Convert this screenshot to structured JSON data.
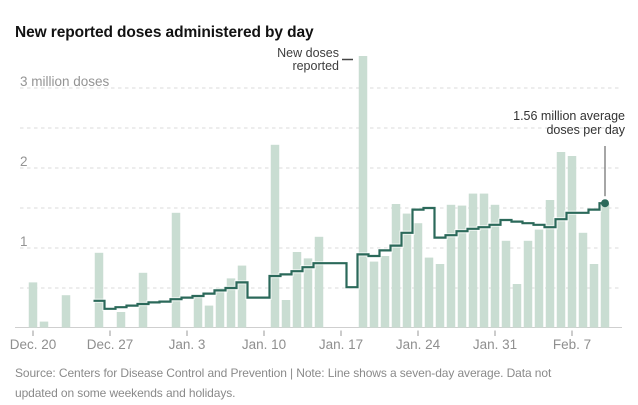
{
  "title": "New reported doses administered by day",
  "annotations": {
    "spike": {
      "line1": "New doses",
      "line2": "reported"
    },
    "average": {
      "line1": "1.56 million average",
      "line2": "doses per day"
    }
  },
  "source_note": "Source: Centers for Disease Control and Prevention | Note: Line shows a seven-day average. Data not updated on some weekends and holidays.",
  "colors": {
    "bar": "#c9ddd2",
    "line": "#2b695a",
    "line_casing": "rgba(255,255,255,0.55)",
    "grid": "#dbdbdb",
    "baseline": "#cfcfcf",
    "tick": "#999999",
    "axis_text": "#929292",
    "title_text": "#121212",
    "annotation_text": "#3d3d3d",
    "pointer": "#757575",
    "source_text": "#8a8a8a"
  },
  "y_axis": {
    "labels": [
      {
        "value": 3,
        "text": "3 million doses"
      },
      {
        "value": 2,
        "text": "2"
      },
      {
        "value": 1,
        "text": "1"
      }
    ]
  },
  "chart_data": {
    "type": "bar",
    "title": "New reported doses administered by day",
    "unit": "million doses per day",
    "ylim": [
      0,
      3.5
    ],
    "y_gridlines": [
      0.5,
      1,
      1.5,
      2,
      2.5,
      3
    ],
    "grid": "dashed horizontal",
    "legend_position": "none",
    "x": [
      "Dec. 19",
      "Dec. 20",
      "Dec. 21",
      "Dec. 22",
      "Dec. 23",
      "Dec. 24",
      "Dec. 25",
      "Dec. 26",
      "Dec. 27",
      "Dec. 28",
      "Dec. 29",
      "Dec. 30",
      "Dec. 31",
      "Jan. 1",
      "Jan. 2",
      "Jan. 3",
      "Jan. 4",
      "Jan. 5",
      "Jan. 6",
      "Jan. 7",
      "Jan. 8",
      "Jan. 9",
      "Jan. 10",
      "Jan. 11",
      "Jan. 12",
      "Jan. 13",
      "Jan. 14",
      "Jan. 15",
      "Jan. 16",
      "Jan. 17",
      "Jan. 18",
      "Jan. 19",
      "Jan. 20",
      "Jan. 21",
      "Jan. 22",
      "Jan. 23",
      "Jan. 24",
      "Jan. 25",
      "Jan. 26",
      "Jan. 27",
      "Jan. 28",
      "Jan. 29",
      "Jan. 30",
      "Jan. 31",
      "Feb. 1",
      "Feb. 2",
      "Feb. 3",
      "Feb. 4",
      "Feb. 5",
      "Feb. 6",
      "Feb. 7",
      "Feb. 8",
      "Feb. 9",
      "Feb. 10"
    ],
    "series": [
      {
        "name": "New reported doses",
        "render": "bar",
        "values": [
          0,
          0.57,
          0.08,
          0,
          0.41,
          0,
          0,
          0.94,
          0,
          0.2,
          0,
          0.69,
          0,
          0,
          1.44,
          0,
          0.4,
          0.28,
          0.5,
          0.62,
          0.78,
          0,
          0,
          2.29,
          0.35,
          0.95,
          0.87,
          1.14,
          0,
          0,
          0,
          3.4,
          0.83,
          0.9,
          1.55,
          1.43,
          1.31,
          0.88,
          0.8,
          1.54,
          1.53,
          1.68,
          1.68,
          1.54,
          1.09,
          0.55,
          1.09,
          1.23,
          1.6,
          2.2,
          2.15,
          1.19,
          0.8,
          1.55
        ]
      },
      {
        "name": "Seven-day average",
        "render": "step-line",
        "values": [
          null,
          null,
          null,
          null,
          null,
          null,
          null,
          0.34,
          0.24,
          0.26,
          0.28,
          0.3,
          0.32,
          0.33,
          0.36,
          0.38,
          0.4,
          0.43,
          0.47,
          0.5,
          0.57,
          0.38,
          0.38,
          0.65,
          0.67,
          0.71,
          0.76,
          0.81,
          0.81,
          0.81,
          0.51,
          0.92,
          0.9,
          0.97,
          1.03,
          1.19,
          1.48,
          1.5,
          1.13,
          1.16,
          1.21,
          1.24,
          1.26,
          1.29,
          1.35,
          1.33,
          1.31,
          1.29,
          1.26,
          1.36,
          1.44,
          1.44,
          1.48,
          1.56
        ]
      }
    ],
    "x_ticks": [
      {
        "label": "Dec. 20",
        "day_index": 1
      },
      {
        "label": "Dec. 27",
        "day_index": 8
      },
      {
        "label": "Jan. 3",
        "day_index": 15
      },
      {
        "label": "Jan. 10",
        "day_index": 22
      },
      {
        "label": "Jan. 17",
        "day_index": 29
      },
      {
        "label": "Jan. 24",
        "day_index": 36
      },
      {
        "label": "Jan. 31",
        "day_index": 43
      },
      {
        "label": "Feb. 7",
        "day_index": 50
      }
    ],
    "callouts": [
      {
        "text": "New doses reported",
        "target_x": "Jan. 19",
        "target_value": 3.4
      },
      {
        "text": "1.56 million average doses per day",
        "target_x": "Feb. 10",
        "target_value": 1.56
      }
    ]
  }
}
